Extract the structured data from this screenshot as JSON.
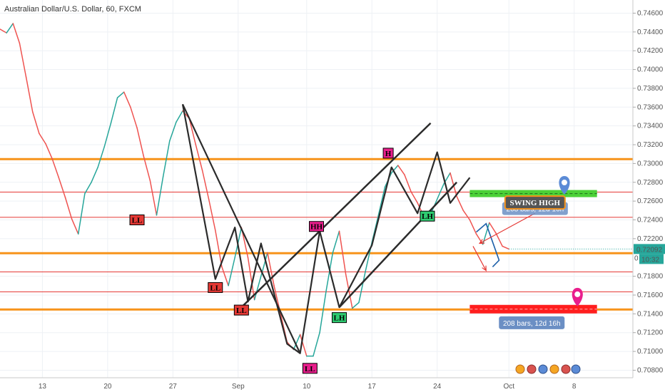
{
  "chart_title": "Australian Dollar/U.S. Dollar, 60, FXCM",
  "chart_data": {
    "type": "line",
    "ylim": [
      0.7072,
      0.7474
    ],
    "xlim": [
      0,
      97
    ],
    "yticks": [
      "0.74600",
      "0.74400",
      "0.74200",
      "0.74000",
      "0.73800",
      "0.73600",
      "0.73400",
      "0.73200",
      "0.73000",
      "0.72800",
      "0.72600",
      "0.72400",
      "0.72200",
      "0.71800",
      "0.71600",
      "0.71400",
      "0.71200",
      "0.71000",
      "0.70800"
    ],
    "xticks": [
      {
        "label": "13",
        "x": 6.5
      },
      {
        "label": "20",
        "x": 16.5
      },
      {
        "label": "27",
        "x": 26.5
      },
      {
        "label": "Sep",
        "x": 36.5
      },
      {
        "label": "10",
        "x": 47
      },
      {
        "label": "17",
        "x": 57
      },
      {
        "label": "24",
        "x": 67
      },
      {
        "label": "Oct",
        "x": 78
      },
      {
        "label": "8",
        "x": 88
      }
    ],
    "last_price": "0.72092",
    "countdown": "10:32",
    "zero_label": "0",
    "hlines": [
      {
        "y": 0.73047,
        "color": "#f7931a",
        "width": 3
      },
      {
        "y": 0.72696,
        "color": "#e53935",
        "width": 1
      },
      {
        "y": 0.72428,
        "color": "#e53935",
        "width": 1
      },
      {
        "y": 0.72045,
        "color": "#f7931a",
        "width": 3
      },
      {
        "y": 0.71846,
        "color": "#e53935",
        "width": 1
      },
      {
        "y": 0.71634,
        "color": "#e53935",
        "width": 1
      },
      {
        "y": 0.71446,
        "color": "#f7931a",
        "width": 3
      }
    ],
    "price": [
      [
        0,
        0.7443
      ],
      [
        1,
        0.7439
      ],
      [
        2,
        0.7449
      ],
      [
        3,
        0.7428
      ],
      [
        4,
        0.7392
      ],
      [
        5,
        0.7355
      ],
      [
        6,
        0.7332
      ],
      [
        7,
        0.7321
      ],
      [
        8,
        0.7305
      ],
      [
        9,
        0.7285
      ],
      [
        10,
        0.7264
      ],
      [
        11,
        0.7241
      ],
      [
        12,
        0.7225
      ],
      [
        13,
        0.7268
      ],
      [
        14,
        0.728
      ],
      [
        15,
        0.7296
      ],
      [
        16,
        0.7318
      ],
      [
        17,
        0.7343
      ],
      [
        18,
        0.737
      ],
      [
        19,
        0.7376
      ],
      [
        20,
        0.736
      ],
      [
        21,
        0.7338
      ],
      [
        22,
        0.7308
      ],
      [
        23,
        0.7282
      ],
      [
        24,
        0.7245
      ],
      [
        25,
        0.7286
      ],
      [
        26,
        0.7324
      ],
      [
        27,
        0.7344
      ],
      [
        28,
        0.7356
      ],
      [
        29,
        0.7348
      ],
      [
        30,
        0.732
      ],
      [
        31,
        0.7293
      ],
      [
        32,
        0.7262
      ],
      [
        33,
        0.7229
      ],
      [
        34,
        0.719
      ],
      [
        35,
        0.717
      ],
      [
        36,
        0.72
      ],
      [
        37,
        0.7232
      ],
      [
        38,
        0.72
      ],
      [
        39,
        0.7155
      ],
      [
        40,
        0.718
      ],
      [
        41,
        0.7205
      ],
      [
        42,
        0.717
      ],
      [
        43,
        0.714
      ],
      [
        44,
        0.711
      ],
      [
        45,
        0.7102
      ],
      [
        46,
        0.7118
      ],
      [
        47,
        0.7095
      ],
      [
        48,
        0.7095
      ],
      [
        49,
        0.712
      ],
      [
        50,
        0.7165
      ],
      [
        51,
        0.7205
      ],
      [
        52,
        0.7228
      ],
      [
        53,
        0.7182
      ],
      [
        54,
        0.7146
      ],
      [
        55,
        0.7152
      ],
      [
        56,
        0.7185
      ],
      [
        57,
        0.7216
      ],
      [
        58,
        0.7245
      ],
      [
        59,
        0.7275
      ],
      [
        60,
        0.729
      ],
      [
        61,
        0.7298
      ],
      [
        62,
        0.7288
      ],
      [
        63,
        0.727
      ],
      [
        64,
        0.7258
      ],
      [
        65,
        0.7243
      ],
      [
        66,
        0.7246
      ],
      [
        67,
        0.7262
      ],
      [
        68,
        0.7278
      ],
      [
        69,
        0.729
      ],
      [
        70,
        0.7265
      ],
      [
        71,
        0.725
      ],
      [
        72,
        0.724
      ],
      [
        73,
        0.7225
      ],
      [
        74,
        0.7214
      ],
      [
        75,
        0.7237
      ],
      [
        76,
        0.7226
      ],
      [
        77,
        0.7212
      ],
      [
        78,
        0.7209
      ]
    ],
    "labels": [
      {
        "text": "LL",
        "x": 21,
        "y": 0.724,
        "bg": "#e53935",
        "border": "#000000",
        "color": "#000000"
      },
      {
        "text": "LL",
        "x": 33,
        "y": 0.7168,
        "bg": "#e53935",
        "border": "#000000",
        "color": "#000000"
      },
      {
        "text": "LL",
        "x": 37,
        "y": 0.7144,
        "bg": "#e53935",
        "border": "#000000",
        "color": "#000000"
      },
      {
        "text": "HH",
        "x": 48.5,
        "y": 0.7233,
        "bg": "#e91e8c",
        "border": "#000000",
        "color": "#000000"
      },
      {
        "text": "LL",
        "x": 47.5,
        "y": 0.7082,
        "bg": "#e91e8c",
        "border": "#000000",
        "color": "#000000"
      },
      {
        "text": "LH",
        "x": 52,
        "y": 0.7136,
        "bg": "#2ecc71",
        "border": "#000000",
        "color": "#000000"
      },
      {
        "text": "H",
        "x": 59.5,
        "y": 0.7311,
        "bg": "#e91e8c",
        "border": "#000000",
        "color": "#000000"
      },
      {
        "text": "LH",
        "x": 65.5,
        "y": 0.7244,
        "bg": "#2ecc71",
        "border": "#000000",
        "color": "#000000"
      }
    ],
    "patterns": [
      [
        [
          28,
          0.7363
        ],
        [
          33,
          0.7177
        ],
        [
          36,
          0.7232
        ],
        [
          38,
          0.7153
        ],
        [
          40,
          0.7215
        ],
        [
          44,
          0.7108
        ],
        [
          46,
          0.7098
        ],
        [
          49,
          0.7228
        ],
        [
          52,
          0.7147
        ],
        [
          57,
          0.7213
        ],
        [
          60,
          0.7296
        ],
        [
          64,
          0.7247
        ],
        [
          67,
          0.7312
        ],
        [
          69,
          0.7258
        ],
        [
          72,
          0.7285
        ]
      ],
      [
        [
          28,
          0.7363
        ],
        [
          46,
          0.7098
        ]
      ]
    ],
    "channels": [
      [
        [
          37,
          0.7147
        ],
        [
          66,
          0.7343
        ]
      ],
      [
        [
          52,
          0.7147
        ],
        [
          70,
          0.728
        ]
      ]
    ],
    "projections": [
      [
        [
          73,
          0.7227
        ],
        [
          74.5,
          0.7236
        ],
        [
          76.5,
          0.7197
        ],
        [
          75.5,
          0.719
        ]
      ]
    ],
    "arrows": [
      {
        "from": [
          82,
          0.7247
        ],
        "to": [
          73.5,
          0.7215
        ]
      },
      {
        "from": [
          72.5,
          0.7212
        ],
        "to": [
          74.5,
          0.7186
        ]
      }
    ],
    "swing_box": {
      "x0": 72,
      "x1": 91.5,
      "y": 0.7268,
      "color": "#4cd137"
    },
    "target_box": {
      "x0": 72,
      "x1": 91.5,
      "y": 0.7145,
      "color": "#ff1e1e"
    },
    "markers": [
      {
        "x": 86.5,
        "y": 0.7276,
        "color": "#5b8bd6"
      },
      {
        "x": 88.5,
        "y": 0.7157,
        "color": "#e91e8c"
      }
    ],
    "swing_label": {
      "text": "SWING HIGH",
      "x": 82,
      "y": 0.72585
    },
    "bars_upper": {
      "text": "208 bars, 12d 16h",
      "x": 82,
      "y": 0.7252
    },
    "bars_lower": {
      "text": "208 bars, 12d 16h",
      "x": 81.5,
      "y": 0.71305
    }
  }
}
